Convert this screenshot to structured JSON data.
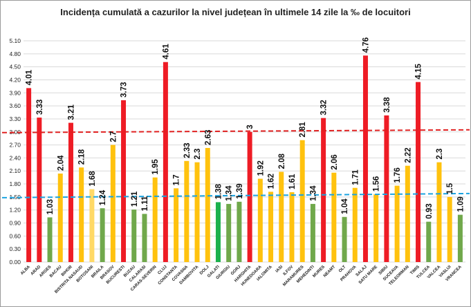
{
  "chart_data": {
    "type": "bar",
    "title": "Incidența cumulată a cazurilor la nivel județean în ultimele 14 zile la ‰ de locuitori",
    "xlabel": "",
    "ylabel": "",
    "ylim": [
      0,
      5.1
    ],
    "yticks": [
      "0.00",
      "0.30",
      "0.60",
      "0.90",
      "1.20",
      "1.50",
      "1.80",
      "2.10",
      "2.40",
      "2.70",
      "3.00",
      "3.30",
      "3.60",
      "3.90",
      "4.20",
      "4.50",
      "4.80",
      "5.10"
    ],
    "grid": true,
    "categories": [
      "ALBA",
      "ARAD",
      "ARGES",
      "BACAU",
      "BIHOR",
      "BISTRITA NASAUD",
      "BOTOSANI",
      "BRAILA",
      "BRASOV",
      "BUCURESTI",
      "BUZAU",
      "CALARASI",
      "CARAS-SEVERIN",
      "CLUJ",
      "CONSTANTA",
      "COVASNA",
      "DAMBOVITA",
      "DOLJ",
      "GALATI",
      "GIURGIU",
      "GORJ",
      "HARGHITA",
      "HUNEDOARA",
      "IALOMITA",
      "IASI",
      "ILFOV",
      "MARAMURES",
      "MEHEDINTI",
      "MURES",
      "NEAMT",
      "OLT",
      "PRAHOVA",
      "SALAJ",
      "SATU MARE",
      "SIBIU",
      "SUCEAVA",
      "TELEORMAN",
      "TIMIS",
      "TULCEA",
      "VALCEA",
      "VASLUI",
      "VRANCEA"
    ],
    "values": [
      4.01,
      3.33,
      1.03,
      2.04,
      3.21,
      2.18,
      1.68,
      1.24,
      2.7,
      3.73,
      1.21,
      1.11,
      1.95,
      4.61,
      1.7,
      2.33,
      2.3,
      2.63,
      1.38,
      1.34,
      1.39,
      3,
      1.92,
      1.62,
      2.08,
      1.61,
      2.81,
      1.34,
      3.32,
      2.06,
      1.04,
      1.71,
      4.76,
      1.56,
      3.38,
      1.76,
      2.22,
      4.15,
      0.93,
      2.3,
      1.5,
      1.09
    ],
    "labels": [
      "4.01",
      "3.33",
      "1.03",
      "2.04",
      "3.21",
      "2.18",
      "1.68",
      "1.24",
      "2.7",
      "3.73",
      "1.21",
      "1.11",
      "1.95",
      "4.61",
      "1.7",
      "2.33",
      "2.3",
      "2.63",
      "1.38",
      "1.34",
      "1.39",
      "3",
      "1.92",
      "1.62",
      "2.08",
      "1.61",
      "2.81",
      "1.34",
      "3.32",
      "2.06",
      "1.04",
      "1.71",
      "4.76",
      "1.56",
      "3.38",
      "1.76",
      "2.22",
      "4.15",
      "0.93",
      "2.3",
      "1.5",
      "1.09"
    ],
    "colors": [
      "red",
      "red",
      "green",
      "yellow",
      "red",
      "yellow",
      "lightyellow",
      "green",
      "yellow",
      "red",
      "green",
      "green",
      "yellow",
      "red",
      "yellow",
      "yellow",
      "yellow",
      "yellow",
      "brightgreen",
      "green",
      "green",
      "red",
      "yellow",
      "yellow",
      "yellow",
      "yellow",
      "yellow",
      "green",
      "red",
      "yellow",
      "green",
      "yellow",
      "red",
      "yellow",
      "red",
      "yellow",
      "yellow",
      "red",
      "green",
      "yellow",
      "yellow",
      "green"
    ],
    "palette": {
      "red": "#ee1c25",
      "yellow": "#ffc20e",
      "lightyellow": "#ffd966",
      "green": "#70a84b",
      "brightgreen": "#1cb14c"
    },
    "reference_lines": [
      {
        "value": 3.0,
        "style": "dashed",
        "color": "#e02020"
      },
      {
        "value": 1.5,
        "style": "dashed",
        "color": "#1aa3e0"
      }
    ]
  }
}
